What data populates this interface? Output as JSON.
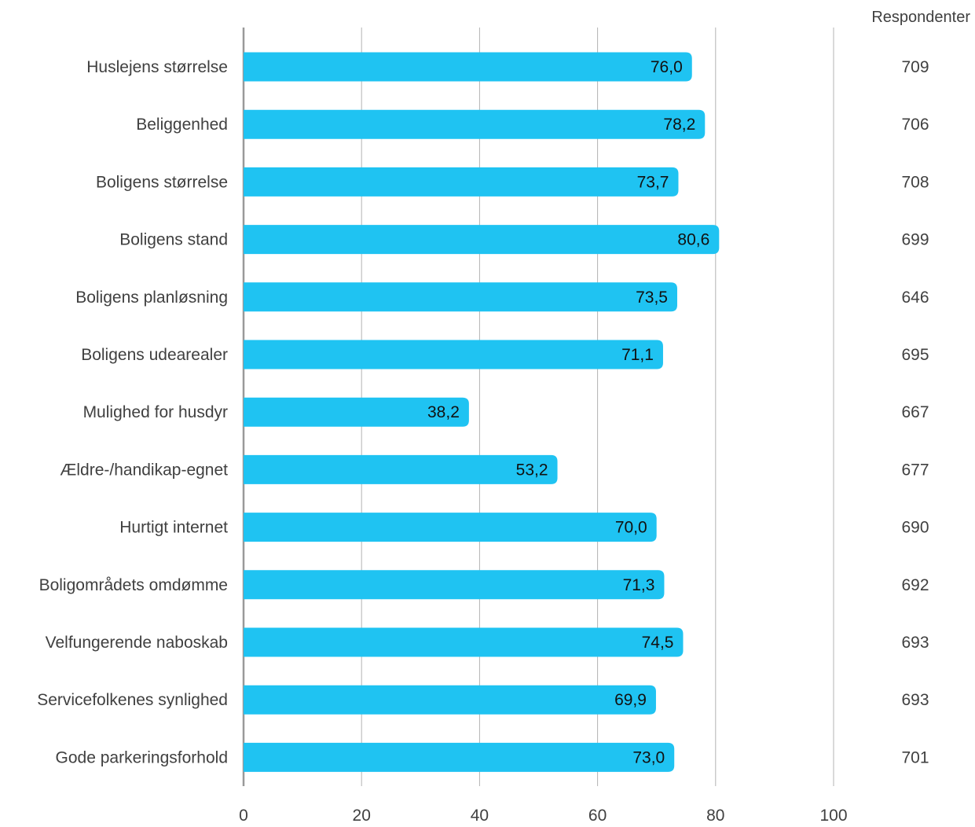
{
  "title": "",
  "respondents_header": "Respondenter",
  "colors": {
    "bar": "#1FC3F2",
    "grid": "#b3b3b3",
    "axis": "#999999",
    "text": "#404040",
    "bar_label": "#111111"
  },
  "chart_data": {
    "type": "bar",
    "orientation": "horizontal",
    "title": "",
    "xlabel": "",
    "ylabel": "",
    "xlim": [
      0,
      100
    ],
    "ticks": [
      0,
      20,
      40,
      60,
      80,
      100
    ],
    "categories": [
      "Huslejens størrelse",
      "Beliggenhed",
      "Boligens størrelse",
      "Boligens stand",
      "Boligens planløsning",
      "Boligens udearealer",
      "Mulighed for husdyr",
      "Ældre-/handikap-egnet",
      "Hurtigt internet",
      "Boligområdets omdømme",
      "Velfungerende naboskab",
      "Servicefolkenes synlighed",
      "Gode parkeringsforhold"
    ],
    "values": [
      76.0,
      78.2,
      73.7,
      80.6,
      73.5,
      71.1,
      38.2,
      53.2,
      70.0,
      71.3,
      74.5,
      69.9,
      73.0
    ],
    "value_labels": [
      "76,0",
      "78,2",
      "73,7",
      "80,6",
      "73,5",
      "71,1",
      "38,2",
      "53,2",
      "70,0",
      "71,3",
      "74,5",
      "69,9",
      "73,0"
    ],
    "respondents": [
      "709",
      "706",
      "708",
      "699",
      "646",
      "695",
      "667",
      "677",
      "690",
      "692",
      "693",
      "693",
      "701"
    ],
    "grid": true,
    "legend": "none"
  }
}
